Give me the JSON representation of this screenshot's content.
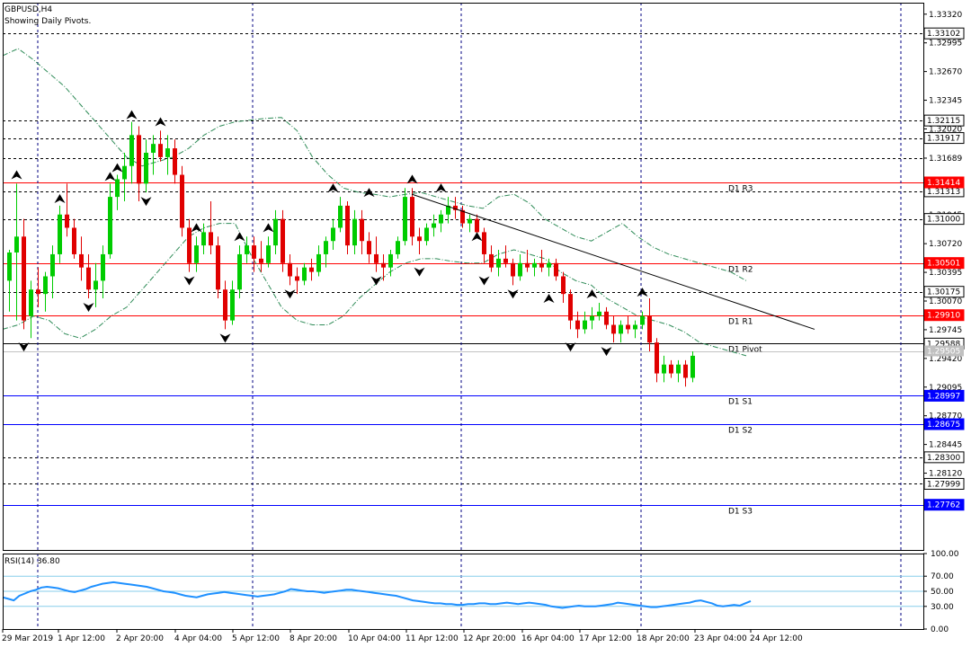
{
  "header": {
    "symbol": "GBPUSD,H4",
    "subtitle": "Showing Daily Pivots."
  },
  "colors": {
    "bull": "#00cc00",
    "bear": "#e00000",
    "pivot_red": "#ff0000",
    "pivot_blue": "#0000ff",
    "frame": "#000000",
    "grid": "#000080",
    "envelope": "#2e8b57",
    "rsi": "#1e90ff",
    "rsi_levels": "#87ceeb",
    "trendline": "#000000"
  },
  "chart_data": [
    {
      "type": "candlestick",
      "price_axis": {
        "ylim": [
          1.2725,
          1.3345
        ],
        "tick_labels": [
          "1.33320",
          "1.32995",
          "1.32670",
          "1.32345",
          "1.32020",
          "1.31689",
          "1.31313",
          "1.31045",
          "1.30720",
          "1.30395",
          "1.30070",
          "1.29745",
          "1.29420",
          "1.29095",
          "1.28770",
          "1.28445",
          "1.28120"
        ]
      },
      "time_axis": [
        "29 Mar 2019",
        "1 Apr 12:00",
        "2 Apr 20:00",
        "4 Apr 04:00",
        "5 Apr 12:00",
        "8 Apr 20:00",
        "10 Apr 04:00",
        "11 Apr 12:00",
        "12 Apr 20:00",
        "16 Apr 04:00",
        "17 Apr 12:00",
        "18 Apr 20:00",
        "23 Apr 04:00",
        "24 Apr 12:00"
      ],
      "dashed_levels": [
        {
          "value": 1.33102,
          "label": "1.33102"
        },
        {
          "value": 1.32115,
          "label": "1.32115"
        },
        {
          "value": 1.31917,
          "label": "1.31917"
        },
        {
          "value": 1.31689,
          "label": ""
        },
        {
          "value": 1.31313,
          "label": "1.31313"
        },
        {
          "value": 1.31,
          "label": "1.31000"
        },
        {
          "value": 1.30175,
          "label": "1.30175"
        },
        {
          "value": 1.283,
          "label": "1.28300"
        },
        {
          "value": 1.27999,
          "label": "1.27999"
        }
      ],
      "pivot_levels": [
        {
          "name": "D1 R3",
          "value": 1.31414,
          "label": "1.31414",
          "kind": "resistance"
        },
        {
          "name": "D1 R2",
          "value": 1.30501,
          "label": "1.30501",
          "kind": "resistance"
        },
        {
          "name": "D1 R1",
          "value": 1.2991,
          "label": "1.29910",
          "kind": "resistance"
        },
        {
          "name": "D1 Pivot",
          "value": 1.29588,
          "label": "1.29588",
          "kind": "pivot"
        },
        {
          "name": "D1 S1",
          "value": 1.28997,
          "label": "1.28997",
          "kind": "support"
        },
        {
          "name": "D1 S2",
          "value": 1.28675,
          "label": "1.28675",
          "kind": "support"
        },
        {
          "name": "D1 S3",
          "value": 1.27762,
          "label": "1.27762",
          "kind": "support"
        }
      ],
      "current_price": {
        "value": 1.29505,
        "label": "1.29505"
      },
      "candles": [
        [
          1.303,
          1.3065,
          1.2995,
          1.3062
        ],
        [
          1.3062,
          1.314,
          1.2985,
          1.308
        ],
        [
          1.308,
          1.31,
          1.2975,
          1.2985
        ],
        [
          1.299,
          1.303,
          1.2965,
          1.302
        ],
        [
          1.302,
          1.3045,
          1.3,
          1.3015
        ],
        [
          1.3015,
          1.304,
          1.2995,
          1.3035
        ],
        [
          1.3035,
          1.307,
          1.301,
          1.306
        ],
        [
          1.306,
          1.3115,
          1.305,
          1.3105
        ],
        [
          1.3105,
          1.314,
          1.308,
          1.309
        ],
        [
          1.309,
          1.31,
          1.3055,
          1.306
        ],
        [
          1.306,
          1.308,
          1.303,
          1.3045
        ],
        [
          1.3045,
          1.306,
          1.301,
          1.302
        ],
        [
          1.302,
          1.305,
          1.3,
          1.303
        ],
        [
          1.303,
          1.307,
          1.301,
          1.306
        ],
        [
          1.306,
          1.314,
          1.3055,
          1.3125
        ],
        [
          1.3125,
          1.315,
          1.311,
          1.3145
        ],
        [
          1.3145,
          1.3175,
          1.312,
          1.316
        ],
        [
          1.316,
          1.321,
          1.314,
          1.3195
        ],
        [
          1.3195,
          1.3205,
          1.312,
          1.314
        ],
        [
          1.314,
          1.319,
          1.313,
          1.3175
        ],
        [
          1.3175,
          1.3195,
          1.315,
          1.3185
        ],
        [
          1.3185,
          1.32,
          1.3165,
          1.317
        ],
        [
          1.317,
          1.3195,
          1.315,
          1.318
        ],
        [
          1.318,
          1.319,
          1.314,
          1.315
        ],
        [
          1.315,
          1.316,
          1.308,
          1.309
        ],
        [
          1.309,
          1.31,
          1.304,
          1.305
        ],
        [
          1.305,
          1.308,
          1.304,
          1.307
        ],
        [
          1.307,
          1.3095,
          1.306,
          1.3085
        ],
        [
          1.3085,
          1.312,
          1.306,
          1.307
        ],
        [
          1.307,
          1.308,
          1.301,
          1.302
        ],
        [
          1.302,
          1.303,
          1.2975,
          1.2985
        ],
        [
          1.2985,
          1.303,
          1.298,
          1.302
        ],
        [
          1.302,
          1.307,
          1.301,
          1.306
        ],
        [
          1.306,
          1.308,
          1.305,
          1.307
        ],
        [
          1.307,
          1.308,
          1.304,
          1.3055
        ],
        [
          1.3055,
          1.3075,
          1.304,
          1.305
        ],
        [
          1.305,
          1.308,
          1.3045,
          1.307
        ],
        [
          1.307,
          1.311,
          1.306,
          1.31
        ],
        [
          1.31,
          1.311,
          1.304,
          1.305
        ],
        [
          1.305,
          1.306,
          1.3025,
          1.3035
        ],
        [
          1.3035,
          1.3045,
          1.3015,
          1.303
        ],
        [
          1.303,
          1.305,
          1.3025,
          1.3045
        ],
        [
          1.3045,
          1.3055,
          1.303,
          1.304
        ],
        [
          1.304,
          1.307,
          1.3035,
          1.306
        ],
        [
          1.306,
          1.308,
          1.3045,
          1.3075
        ],
        [
          1.3075,
          1.31,
          1.3065,
          1.309
        ],
        [
          1.309,
          1.3125,
          1.3085,
          1.3115
        ],
        [
          1.3115,
          1.312,
          1.306,
          1.307
        ],
        [
          1.307,
          1.311,
          1.306,
          1.31
        ],
        [
          1.31,
          1.311,
          1.306,
          1.3075
        ],
        [
          1.3075,
          1.3085,
          1.305,
          1.306
        ],
        [
          1.306,
          1.308,
          1.304,
          1.305
        ],
        [
          1.305,
          1.306,
          1.303,
          1.3045
        ],
        [
          1.3045,
          1.3065,
          1.3035,
          1.306
        ],
        [
          1.306,
          1.308,
          1.3055,
          1.3075
        ],
        [
          1.3075,
          1.3135,
          1.307,
          1.3125
        ],
        [
          1.3125,
          1.3135,
          1.307,
          1.308
        ],
        [
          1.308,
          1.309,
          1.306,
          1.3075
        ],
        [
          1.3075,
          1.3095,
          1.307,
          1.309
        ],
        [
          1.309,
          1.3105,
          1.308,
          1.3095
        ],
        [
          1.3095,
          1.311,
          1.3085,
          1.3105
        ],
        [
          1.3105,
          1.3125,
          1.3095,
          1.3115
        ],
        [
          1.3115,
          1.3125,
          1.31,
          1.311
        ],
        [
          1.311,
          1.3115,
          1.309,
          1.3095
        ],
        [
          1.3095,
          1.3105,
          1.3085,
          1.31
        ],
        [
          1.31,
          1.3105,
          1.308,
          1.3085
        ],
        [
          1.3085,
          1.309,
          1.305,
          1.306
        ],
        [
          1.306,
          1.307,
          1.304,
          1.3045
        ],
        [
          1.3045,
          1.3065,
          1.3035,
          1.3055
        ],
        [
          1.3055,
          1.307,
          1.3045,
          1.305
        ],
        [
          1.305,
          1.3055,
          1.3025,
          1.3035
        ],
        [
          1.3035,
          1.306,
          1.303,
          1.305
        ],
        [
          1.305,
          1.3065,
          1.304,
          1.3045
        ],
        [
          1.3045,
          1.3055,
          1.3035,
          1.305
        ],
        [
          1.305,
          1.3065,
          1.304,
          1.3045
        ],
        [
          1.3045,
          1.3055,
          1.3035,
          1.305
        ],
        [
          1.305,
          1.3055,
          1.303,
          1.3035
        ],
        [
          1.3035,
          1.304,
          1.3005,
          1.3015
        ],
        [
          1.3015,
          1.302,
          1.2975,
          1.2985
        ],
        [
          1.2985,
          1.2995,
          1.2965,
          1.2975
        ],
        [
          1.2975,
          1.2995,
          1.297,
          1.2985
        ],
        [
          1.2985,
          1.3,
          1.2975,
          1.299
        ],
        [
          1.299,
          1.3005,
          1.2985,
          1.2995
        ],
        [
          1.2995,
          1.3,
          1.2975,
          1.298
        ],
        [
          1.298,
          1.299,
          1.296,
          1.297
        ],
        [
          1.297,
          1.2985,
          1.296,
          1.298
        ],
        [
          1.298,
          1.299,
          1.297,
          1.2975
        ],
        [
          1.2975,
          1.2985,
          1.2965,
          1.298
        ],
        [
          1.298,
          1.2995,
          1.2975,
          1.299
        ],
        [
          1.299,
          1.301,
          1.295,
          1.296
        ],
        [
          1.296,
          1.2965,
          1.2915,
          1.2925
        ],
        [
          1.2925,
          1.2945,
          1.2915,
          1.2935
        ],
        [
          1.2935,
          1.294,
          1.292,
          1.2925
        ],
        [
          1.2925,
          1.294,
          1.2915,
          1.2935
        ],
        [
          1.2935,
          1.294,
          1.291,
          1.292
        ],
        [
          1.292,
          1.295,
          1.2915,
          1.2945
        ]
      ],
      "fractals": [
        {
          "i": 1,
          "dir": "up",
          "value": 1.3145
        },
        {
          "i": 2,
          "dir": "down",
          "value": 1.296
        },
        {
          "i": 7,
          "dir": "up",
          "value": 1.3118
        },
        {
          "i": 11,
          "dir": "down",
          "value": 1.3005
        },
        {
          "i": 14,
          "dir": "up",
          "value": 1.3143
        },
        {
          "i": 15,
          "dir": "up",
          "value": 1.3153
        },
        {
          "i": 17,
          "dir": "up",
          "value": 1.3213
        },
        {
          "i": 19,
          "dir": "down",
          "value": 1.3125
        },
        {
          "i": 21,
          "dir": "up",
          "value": 1.3205
        },
        {
          "i": 26,
          "dir": "up",
          "value": 1.3085
        },
        {
          "i": 25,
          "dir": "down",
          "value": 1.3035
        },
        {
          "i": 30,
          "dir": "down",
          "value": 1.297
        },
        {
          "i": 32,
          "dir": "up",
          "value": 1.3075
        },
        {
          "i": 36,
          "dir": "up",
          "value": 1.3085
        },
        {
          "i": 39,
          "dir": "down",
          "value": 1.302
        },
        {
          "i": 45,
          "dir": "up",
          "value": 1.313
        },
        {
          "i": 50,
          "dir": "up",
          "value": 1.3125
        },
        {
          "i": 51,
          "dir": "down",
          "value": 1.3035
        },
        {
          "i": 56,
          "dir": "up",
          "value": 1.314
        },
        {
          "i": 57,
          "dir": "down",
          "value": 1.3045
        },
        {
          "i": 60,
          "dir": "up",
          "value": 1.313
        },
        {
          "i": 65,
          "dir": "up",
          "value": 1.3075
        },
        {
          "i": 66,
          "dir": "down",
          "value": 1.3035
        },
        {
          "i": 70,
          "dir": "down",
          "value": 1.302
        },
        {
          "i": 75,
          "dir": "up",
          "value": 1.3005
        },
        {
          "i": 78,
          "dir": "down",
          "value": 1.296
        },
        {
          "i": 81,
          "dir": "up",
          "value": 1.301
        },
        {
          "i": 83,
          "dir": "down",
          "value": 1.2955
        },
        {
          "i": 88,
          "dir": "up",
          "value": 1.3012
        }
      ],
      "trendline": {
        "from": [
          56,
          1.3128
        ],
        "to": [
          112,
          1.2975
        ]
      },
      "envelope_series": [
        {
          "values": [
            1.3285,
            1.3293,
            1.328,
            1.3265,
            1.325,
            1.323,
            1.321,
            1.319,
            1.317,
            1.316,
            1.3165,
            1.317,
            1.318,
            1.3195,
            1.3205,
            1.321,
            1.3212,
            1.3214,
            1.3215,
            1.32,
            1.317,
            1.315,
            1.3135,
            1.313,
            1.3128,
            1.3125,
            1.3128,
            1.313,
            1.3125,
            1.312,
            1.3115,
            1.3112,
            1.3125,
            1.3128,
            1.3118,
            1.31,
            1.309,
            1.308,
            1.3075,
            1.3085,
            1.3095,
            1.308,
            1.3068,
            1.306,
            1.3055,
            1.305,
            1.3045,
            1.304,
            1.303
          ]
        },
        {
          "values": [
            1.2975,
            1.298,
            1.299,
            1.2985,
            1.297,
            1.2965,
            1.2975,
            1.299,
            1.3,
            1.302,
            1.304,
            1.306,
            1.308,
            1.309,
            1.3095,
            1.3095,
            1.306,
            1.303,
            1.3,
            1.2985,
            1.298,
            1.298,
            1.299,
            1.301,
            1.3025,
            1.304,
            1.305,
            1.3055,
            1.3055,
            1.3052,
            1.305,
            1.305,
            1.306,
            1.3065,
            1.306,
            1.3055,
            1.304,
            1.303,
            1.3025,
            1.301,
            1.3,
            1.299,
            1.2985,
            1.298,
            1.2972,
            1.296,
            1.2955,
            1.295,
            1.2945
          ]
        }
      ]
    },
    {
      "type": "line",
      "title": "RSI(14) 36.80",
      "ylim": [
        0,
        100
      ],
      "tick_labels": [
        "100.00",
        "70.00",
        "50.00",
        "30.00",
        "0.00"
      ],
      "levels": [
        70,
        50,
        30
      ],
      "values": [
        42,
        40,
        38,
        44,
        47,
        50,
        52,
        55,
        56,
        55,
        54,
        52,
        50,
        49,
        51,
        53,
        56,
        58,
        60,
        61,
        62,
        61,
        60,
        59,
        58,
        57,
        56,
        54,
        52,
        50,
        49,
        48,
        46,
        44,
        43,
        42,
        44,
        46,
        47,
        48,
        49,
        48,
        47,
        46,
        45,
        44,
        43,
        44,
        45,
        46,
        48,
        50,
        53,
        52,
        51,
        50,
        50,
        49,
        48,
        49,
        50,
        51,
        52,
        52,
        51,
        50,
        49,
        48,
        47,
        46,
        45,
        44,
        42,
        40,
        38,
        37,
        36,
        35,
        34,
        34,
        33,
        33,
        32,
        32,
        33,
        33,
        34,
        34,
        33,
        33,
        34,
        35,
        34,
        33,
        34,
        35,
        34,
        33,
        32,
        30,
        29,
        28,
        29,
        30,
        31,
        30,
        30,
        30,
        31,
        32,
        33,
        35,
        34,
        33,
        32,
        31,
        30,
        29,
        29,
        30,
        31,
        32,
        33,
        34,
        35,
        37,
        38,
        36,
        34,
        31,
        30,
        31,
        32,
        31,
        34,
        37
      ]
    }
  ]
}
